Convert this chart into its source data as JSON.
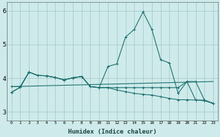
{
  "xlabel": "Humidex (Indice chaleur)",
  "xlim": [
    -0.5,
    23.5
  ],
  "ylim": [
    2.75,
    6.25
  ],
  "xticks": [
    0,
    1,
    2,
    3,
    4,
    5,
    6,
    7,
    8,
    9,
    10,
    11,
    12,
    13,
    14,
    15,
    16,
    17,
    18,
    19,
    20,
    21,
    22,
    23
  ],
  "yticks": [
    3,
    4,
    5,
    6
  ],
  "background_color": "#ceeaea",
  "grid_color": "#a8cccc",
  "line_color": "#1a6e6e",
  "series1_x": [
    0,
    1,
    2,
    3,
    4,
    5,
    6,
    7,
    8,
    9,
    10,
    11,
    12,
    13,
    14,
    15,
    16,
    17,
    18,
    19,
    20,
    21,
    22,
    23
  ],
  "series1_y": [
    3.58,
    3.73,
    4.18,
    4.08,
    4.07,
    4.02,
    3.95,
    4.01,
    4.05,
    3.75,
    3.72,
    4.35,
    4.42,
    5.22,
    5.45,
    5.97,
    5.45,
    4.55,
    4.45,
    3.55,
    3.9,
    3.35,
    3.35,
    3.25
  ],
  "series2_x": [
    0,
    1,
    2,
    3,
    4,
    5,
    6,
    7,
    8,
    9,
    10,
    11,
    12,
    13,
    14,
    15,
    16,
    17,
    18,
    19,
    20,
    21,
    22,
    23
  ],
  "series2_y": [
    3.75,
    3.75,
    4.18,
    4.08,
    4.07,
    4.02,
    3.95,
    4.01,
    4.05,
    3.75,
    3.72,
    3.72,
    3.72,
    3.72,
    3.72,
    3.72,
    3.72,
    3.72,
    3.72,
    3.72,
    3.9,
    3.9,
    3.35,
    3.25
  ],
  "series3_x": [
    0,
    23
  ],
  "series3_y": [
    3.75,
    3.9
  ],
  "series4_x": [
    0,
    1,
    2,
    3,
    4,
    5,
    6,
    7,
    8,
    9,
    10,
    11,
    12,
    13,
    14,
    15,
    16,
    17,
    18,
    19,
    20,
    21,
    22,
    23
  ],
  "series4_y": [
    3.58,
    3.73,
    4.18,
    4.08,
    4.07,
    4.02,
    3.95,
    4.01,
    4.05,
    3.75,
    3.72,
    3.72,
    3.65,
    3.6,
    3.55,
    3.52,
    3.5,
    3.45,
    3.4,
    3.36,
    3.36,
    3.35,
    3.33,
    3.25
  ]
}
